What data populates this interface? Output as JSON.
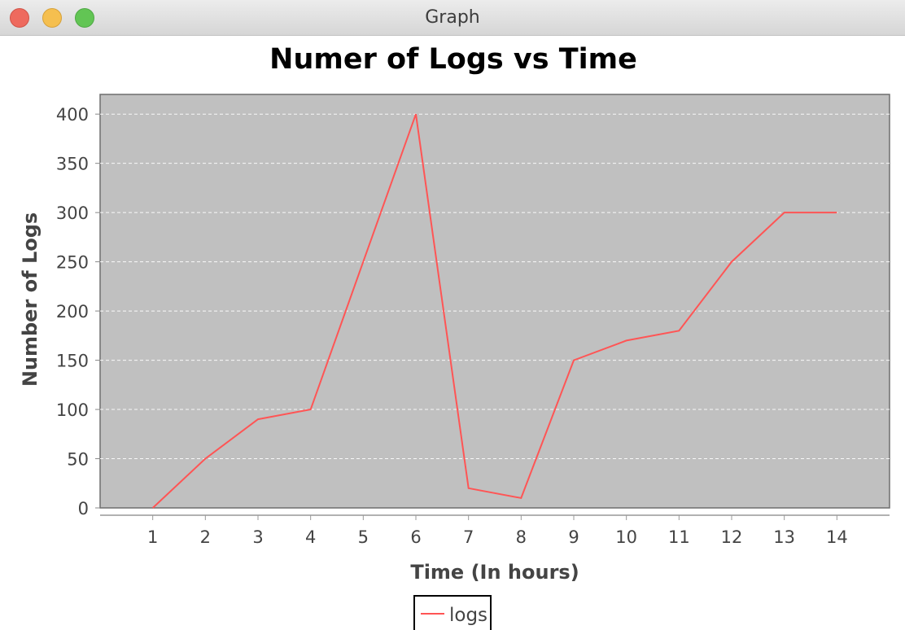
{
  "window": {
    "title": "Graph"
  },
  "colors": {
    "plot_background": "#c0c0c0",
    "gridline": "#ffffff",
    "series_line": "#ff5555",
    "axis_text": "#444444",
    "title_text": "#000000"
  },
  "chart_data": {
    "type": "line",
    "title": "Numer of Logs vs Time",
    "xlabel": "Time (In hours)",
    "ylabel": "Number of Logs",
    "x": [
      1,
      2,
      3,
      4,
      5,
      6,
      7,
      8,
      9,
      10,
      11,
      12,
      13,
      14
    ],
    "series": [
      {
        "name": "logs",
        "values": [
          0,
          50,
          90,
          100,
          250,
          400,
          20,
          10,
          150,
          170,
          180,
          250,
          300,
          300
        ]
      }
    ],
    "xlim": [
      0,
      15
    ],
    "ylim": [
      0,
      420
    ],
    "xticks": [
      1,
      2,
      3,
      4,
      5,
      6,
      7,
      8,
      9,
      10,
      11,
      12,
      13,
      14
    ],
    "yticks": [
      0,
      50,
      100,
      150,
      200,
      250,
      300,
      350,
      400
    ],
    "grid": "horizontal-dashed",
    "legend_position": "bottom-center"
  }
}
